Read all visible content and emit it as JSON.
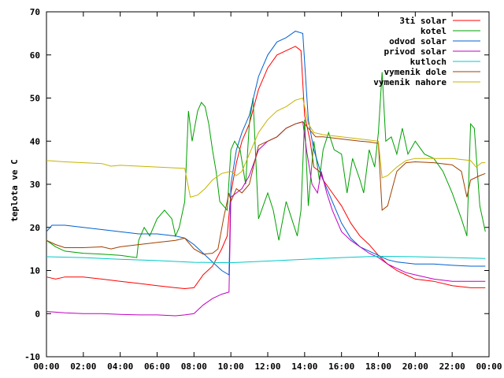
{
  "chart_data": {
    "type": "line",
    "title": "",
    "xlabel": "",
    "ylabel": "teplota ve C",
    "xlim": [
      0,
      24
    ],
    "ylim": [
      -10,
      70
    ],
    "x_ticks": [
      "00:00",
      "02:00",
      "04:00",
      "06:00",
      "08:00",
      "10:00",
      "12:00",
      "14:00",
      "16:00",
      "18:00",
      "20:00",
      "22:00",
      "00:00"
    ],
    "y_ticks": [
      "-10",
      "0",
      "10",
      "20",
      "30",
      "40",
      "50",
      "60",
      "70"
    ],
    "grid": false,
    "legend_position": "top-right",
    "series": [
      {
        "name": "3ti solar",
        "color": "#ff0000",
        "points": [
          [
            0,
            8.5
          ],
          [
            0.5,
            8
          ],
          [
            1,
            8.5
          ],
          [
            2,
            8.5
          ],
          [
            3,
            8
          ],
          [
            4,
            7.5
          ],
          [
            5,
            7
          ],
          [
            6,
            6.5
          ],
          [
            7,
            6
          ],
          [
            7.5,
            5.8
          ],
          [
            8,
            6
          ],
          [
            8.5,
            9
          ],
          [
            9,
            11
          ],
          [
            9.5,
            15
          ],
          [
            9.8,
            18
          ],
          [
            10,
            28
          ],
          [
            10.3,
            35
          ],
          [
            10.6,
            40
          ],
          [
            11,
            44
          ],
          [
            11.5,
            52
          ],
          [
            12,
            57
          ],
          [
            12.5,
            60
          ],
          [
            13,
            61
          ],
          [
            13.5,
            62
          ],
          [
            13.8,
            61
          ],
          [
            14,
            46
          ],
          [
            14.3,
            40
          ],
          [
            14.5,
            34
          ],
          [
            14.8,
            33
          ],
          [
            15,
            31
          ],
          [
            15.5,
            28
          ],
          [
            16,
            25
          ],
          [
            16.5,
            21
          ],
          [
            17,
            18
          ],
          [
            17.5,
            16
          ],
          [
            18,
            13.5
          ],
          [
            18.5,
            11.5
          ],
          [
            19,
            10
          ],
          [
            19.5,
            9
          ],
          [
            20,
            8
          ],
          [
            21,
            7.5
          ],
          [
            22,
            6.5
          ],
          [
            23,
            6
          ],
          [
            23.8,
            6
          ]
        ]
      },
      {
        "name": "kotel",
        "color": "#00a000",
        "points": [
          [
            0,
            17
          ],
          [
            0.5,
            15.5
          ],
          [
            1,
            14.5
          ],
          [
            2,
            14
          ],
          [
            3,
            13.8
          ],
          [
            4,
            13.5
          ],
          [
            4.9,
            13
          ],
          [
            5,
            17
          ],
          [
            5.3,
            20
          ],
          [
            5.6,
            18
          ],
          [
            6,
            22
          ],
          [
            6.4,
            24
          ],
          [
            6.8,
            22
          ],
          [
            7,
            18
          ],
          [
            7.2,
            20
          ],
          [
            7.5,
            26
          ],
          [
            7.7,
            47
          ],
          [
            7.9,
            40
          ],
          [
            8.2,
            47
          ],
          [
            8.4,
            49
          ],
          [
            8.6,
            48
          ],
          [
            8.8,
            44
          ],
          [
            9,
            38
          ],
          [
            9.2,
            33
          ],
          [
            9.4,
            26
          ],
          [
            9.6,
            25
          ],
          [
            9.8,
            24
          ],
          [
            10,
            38
          ],
          [
            10.2,
            40
          ],
          [
            10.5,
            38
          ],
          [
            10.8,
            30
          ],
          [
            11,
            44
          ],
          [
            11.2,
            50
          ],
          [
            11.5,
            22
          ],
          [
            12,
            28
          ],
          [
            12.3,
            24
          ],
          [
            12.6,
            17
          ],
          [
            13,
            26
          ],
          [
            13.3,
            22
          ],
          [
            13.6,
            18
          ],
          [
            13.8,
            24
          ],
          [
            14,
            45
          ],
          [
            14.2,
            25
          ],
          [
            14.5,
            40
          ],
          [
            14.8,
            31
          ],
          [
            15,
            38
          ],
          [
            15.3,
            42
          ],
          [
            15.6,
            38
          ],
          [
            16,
            37
          ],
          [
            16.3,
            28
          ],
          [
            16.6,
            36
          ],
          [
            17,
            31
          ],
          [
            17.2,
            28
          ],
          [
            17.5,
            38
          ],
          [
            17.8,
            34
          ],
          [
            18,
            42
          ],
          [
            18.2,
            56
          ],
          [
            18.4,
            40
          ],
          [
            18.7,
            41
          ],
          [
            19,
            37
          ],
          [
            19.3,
            43
          ],
          [
            19.6,
            37
          ],
          [
            20,
            40
          ],
          [
            20.5,
            37
          ],
          [
            21,
            36
          ],
          [
            21.5,
            33
          ],
          [
            22,
            28
          ],
          [
            22.5,
            22
          ],
          [
            22.8,
            18
          ],
          [
            23,
            44
          ],
          [
            23.2,
            43
          ],
          [
            23.5,
            25
          ],
          [
            23.8,
            19
          ]
        ]
      },
      {
        "name": "odvod solar",
        "color": "#0060d0",
        "points": [
          [
            0,
            19
          ],
          [
            0.3,
            20.5
          ],
          [
            1,
            20.5
          ],
          [
            2,
            20
          ],
          [
            3,
            19.5
          ],
          [
            4,
            19
          ],
          [
            5,
            18.5
          ],
          [
            6,
            18.5
          ],
          [
            7,
            18
          ],
          [
            7.5,
            17.5
          ],
          [
            8,
            16
          ],
          [
            8.5,
            14
          ],
          [
            9,
            12
          ],
          [
            9.5,
            10
          ],
          [
            9.9,
            9
          ],
          [
            10,
            30
          ],
          [
            10.3,
            38
          ],
          [
            10.6,
            42
          ],
          [
            11,
            46
          ],
          [
            11.5,
            55
          ],
          [
            12,
            60
          ],
          [
            12.5,
            63
          ],
          [
            13,
            64
          ],
          [
            13.5,
            65.5
          ],
          [
            13.9,
            65
          ],
          [
            14.2,
            45
          ],
          [
            14.5,
            38
          ],
          [
            15,
            31
          ],
          [
            15.5,
            26
          ],
          [
            16,
            21
          ],
          [
            16.5,
            17.5
          ],
          [
            17,
            15.5
          ],
          [
            17.5,
            14.5
          ],
          [
            18,
            13.5
          ],
          [
            18.5,
            12.5
          ],
          [
            19,
            12
          ],
          [
            20,
            11.5
          ],
          [
            21,
            11.5
          ],
          [
            22,
            11.2
          ],
          [
            23,
            11
          ],
          [
            23.8,
            11
          ]
        ]
      },
      {
        "name": "privod solar",
        "color": "#c000c0",
        "points": [
          [
            0,
            0.5
          ],
          [
            1,
            0.2
          ],
          [
            2,
            0
          ],
          [
            3,
            0
          ],
          [
            4,
            -0.2
          ],
          [
            5,
            -0.3
          ],
          [
            6,
            -0.3
          ],
          [
            7,
            -0.5
          ],
          [
            7.5,
            -0.3
          ],
          [
            8,
            0
          ],
          [
            8.5,
            2
          ],
          [
            9,
            3.5
          ],
          [
            9.5,
            4.5
          ],
          [
            9.9,
            5
          ],
          [
            10,
            27
          ],
          [
            10.3,
            28
          ],
          [
            10.6,
            29
          ],
          [
            11,
            32
          ],
          [
            11.5,
            38
          ],
          [
            12,
            40
          ],
          [
            12.5,
            41
          ],
          [
            13,
            43
          ],
          [
            13.5,
            44
          ],
          [
            13.9,
            44.5
          ],
          [
            14.1,
            38
          ],
          [
            14.4,
            30
          ],
          [
            14.7,
            28
          ],
          [
            14.9,
            33
          ],
          [
            15.2,
            28
          ],
          [
            15.5,
            24
          ],
          [
            16,
            19
          ],
          [
            16.5,
            17
          ],
          [
            17,
            15.5
          ],
          [
            17.5,
            14
          ],
          [
            18,
            13
          ],
          [
            18.5,
            11.5
          ],
          [
            19,
            10.5
          ],
          [
            19.5,
            9.5
          ],
          [
            20,
            9
          ],
          [
            21,
            8
          ],
          [
            22,
            7.5
          ],
          [
            23,
            7.5
          ],
          [
            23.8,
            7.5
          ]
        ]
      },
      {
        "name": "kutloch",
        "color": "#00c8c8",
        "points": [
          [
            0,
            13.2
          ],
          [
            2,
            13
          ],
          [
            4,
            12.6
          ],
          [
            6,
            12.3
          ],
          [
            8,
            11.9
          ],
          [
            10,
            11.8
          ],
          [
            12,
            12.2
          ],
          [
            14,
            12.6
          ],
          [
            16,
            13
          ],
          [
            18,
            13.3
          ],
          [
            20,
            13.2
          ],
          [
            22,
            13
          ],
          [
            23.8,
            12.8
          ]
        ]
      },
      {
        "name": "vymenik dole",
        "color": "#a04000",
        "points": [
          [
            0,
            17
          ],
          [
            0.5,
            16
          ],
          [
            1,
            15.3
          ],
          [
            2,
            15.3
          ],
          [
            3,
            15.5
          ],
          [
            3.5,
            15
          ],
          [
            4,
            15.5
          ],
          [
            5,
            16
          ],
          [
            6,
            16.5
          ],
          [
            7,
            17
          ],
          [
            7.5,
            17.5
          ],
          [
            8,
            15
          ],
          [
            8.5,
            13.8
          ],
          [
            9,
            14
          ],
          [
            9.3,
            15
          ],
          [
            9.6,
            22
          ],
          [
            9.9,
            28
          ],
          [
            10,
            26
          ],
          [
            10.3,
            29
          ],
          [
            10.6,
            28
          ],
          [
            11,
            30
          ],
          [
            11.5,
            39
          ],
          [
            12,
            40
          ],
          [
            12.5,
            41
          ],
          [
            13,
            43
          ],
          [
            13.5,
            44
          ],
          [
            13.9,
            44.5
          ],
          [
            14.2,
            43
          ],
          [
            14.6,
            41
          ],
          [
            15,
            41
          ],
          [
            16,
            40.5
          ],
          [
            17,
            40
          ],
          [
            17.5,
            39.8
          ],
          [
            18,
            39.5
          ],
          [
            18.2,
            24
          ],
          [
            18.5,
            25
          ],
          [
            19,
            33
          ],
          [
            19.5,
            35
          ],
          [
            20,
            35.2
          ],
          [
            21,
            35
          ],
          [
            22,
            34.5
          ],
          [
            22.5,
            33
          ],
          [
            22.8,
            27
          ],
          [
            23,
            31
          ],
          [
            23.5,
            32
          ],
          [
            23.8,
            32.5
          ]
        ]
      },
      {
        "name": "vymenik nahore",
        "color": "#c8b400",
        "points": [
          [
            0,
            35.5
          ],
          [
            1,
            35.2
          ],
          [
            2,
            35
          ],
          [
            3,
            34.8
          ],
          [
            3.5,
            34.2
          ],
          [
            4,
            34.4
          ],
          [
            5,
            34.2
          ],
          [
            6,
            34
          ],
          [
            7,
            33.8
          ],
          [
            7.5,
            33.7
          ],
          [
            7.8,
            27
          ],
          [
            8.2,
            27.5
          ],
          [
            8.6,
            29
          ],
          [
            9,
            31
          ],
          [
            9.5,
            32.5
          ],
          [
            10,
            33
          ],
          [
            10.3,
            32
          ],
          [
            10.6,
            33
          ],
          [
            11,
            37
          ],
          [
            11.5,
            42
          ],
          [
            12,
            45
          ],
          [
            12.5,
            47
          ],
          [
            13,
            48
          ],
          [
            13.5,
            49.5
          ],
          [
            13.9,
            50
          ],
          [
            14.2,
            44
          ],
          [
            14.5,
            42
          ],
          [
            15,
            41.5
          ],
          [
            16,
            41
          ],
          [
            17,
            40.5
          ],
          [
            18,
            40
          ],
          [
            18.2,
            31.5
          ],
          [
            18.5,
            32
          ],
          [
            19,
            34
          ],
          [
            19.5,
            35.5
          ],
          [
            20,
            36
          ],
          [
            21,
            36
          ],
          [
            22,
            36
          ],
          [
            23,
            35.5
          ],
          [
            23.3,
            34
          ],
          [
            23.6,
            35
          ],
          [
            23.8,
            35
          ]
        ]
      }
    ]
  }
}
